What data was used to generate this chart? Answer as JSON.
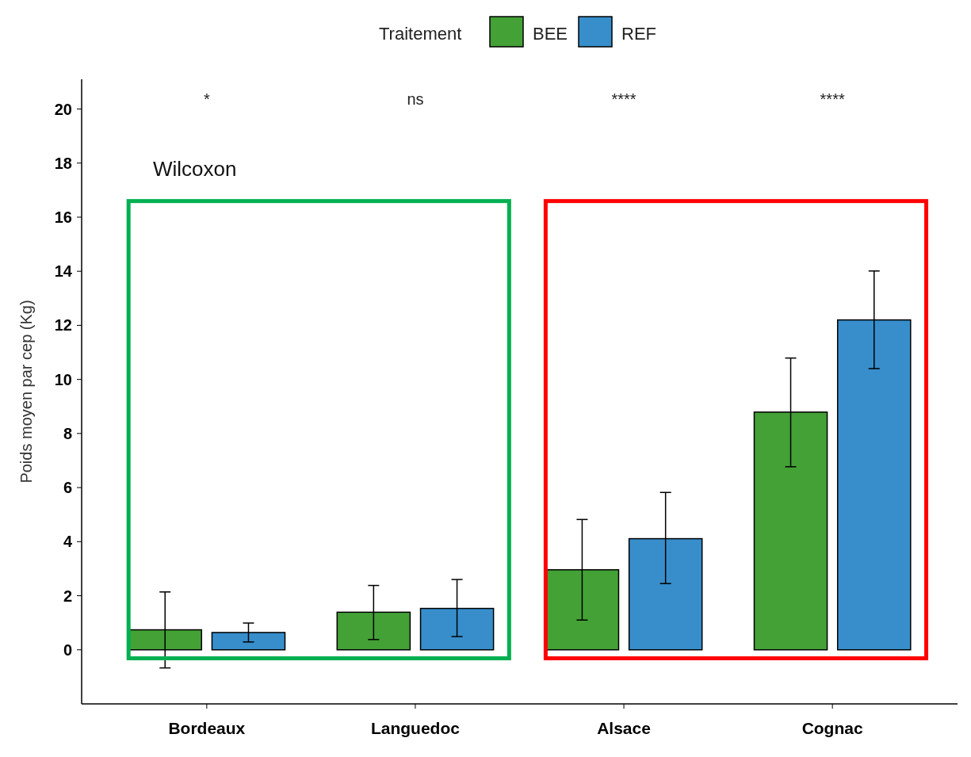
{
  "chart_data": {
    "type": "bar",
    "ylabel": "Poids moyen par cep (Kg)",
    "legend_title": "Traitement",
    "legend": "top",
    "categories": [
      "Bordeaux",
      "Languedoc",
      "Alsace",
      "Cognac"
    ],
    "series": [
      {
        "name": "BEE",
        "color": "#43a136",
        "values": [
          0.74,
          1.39,
          2.96,
          8.79
        ],
        "errors": [
          [
            -0.67,
            2.14
          ],
          [
            0.38,
            2.38
          ],
          [
            1.1,
            4.82
          ],
          [
            6.77,
            10.79
          ]
        ]
      },
      {
        "name": "REF",
        "color": "#378ecb",
        "values": [
          0.64,
          1.53,
          4.11,
          12.2
        ],
        "errors": [
          [
            0.29,
            0.99
          ],
          [
            0.49,
            2.6
          ],
          [
            2.45,
            5.82
          ],
          [
            10.4,
            14.01
          ]
        ]
      }
    ],
    "ylim": [
      -2,
      21.1
    ],
    "yticks": [
      0,
      2,
      4,
      6,
      8,
      10,
      12,
      14,
      16,
      18,
      20
    ],
    "grid": false,
    "annotations": [
      "*",
      "ns",
      "****",
      "****",
      "Wilcoxon"
    ]
  }
}
